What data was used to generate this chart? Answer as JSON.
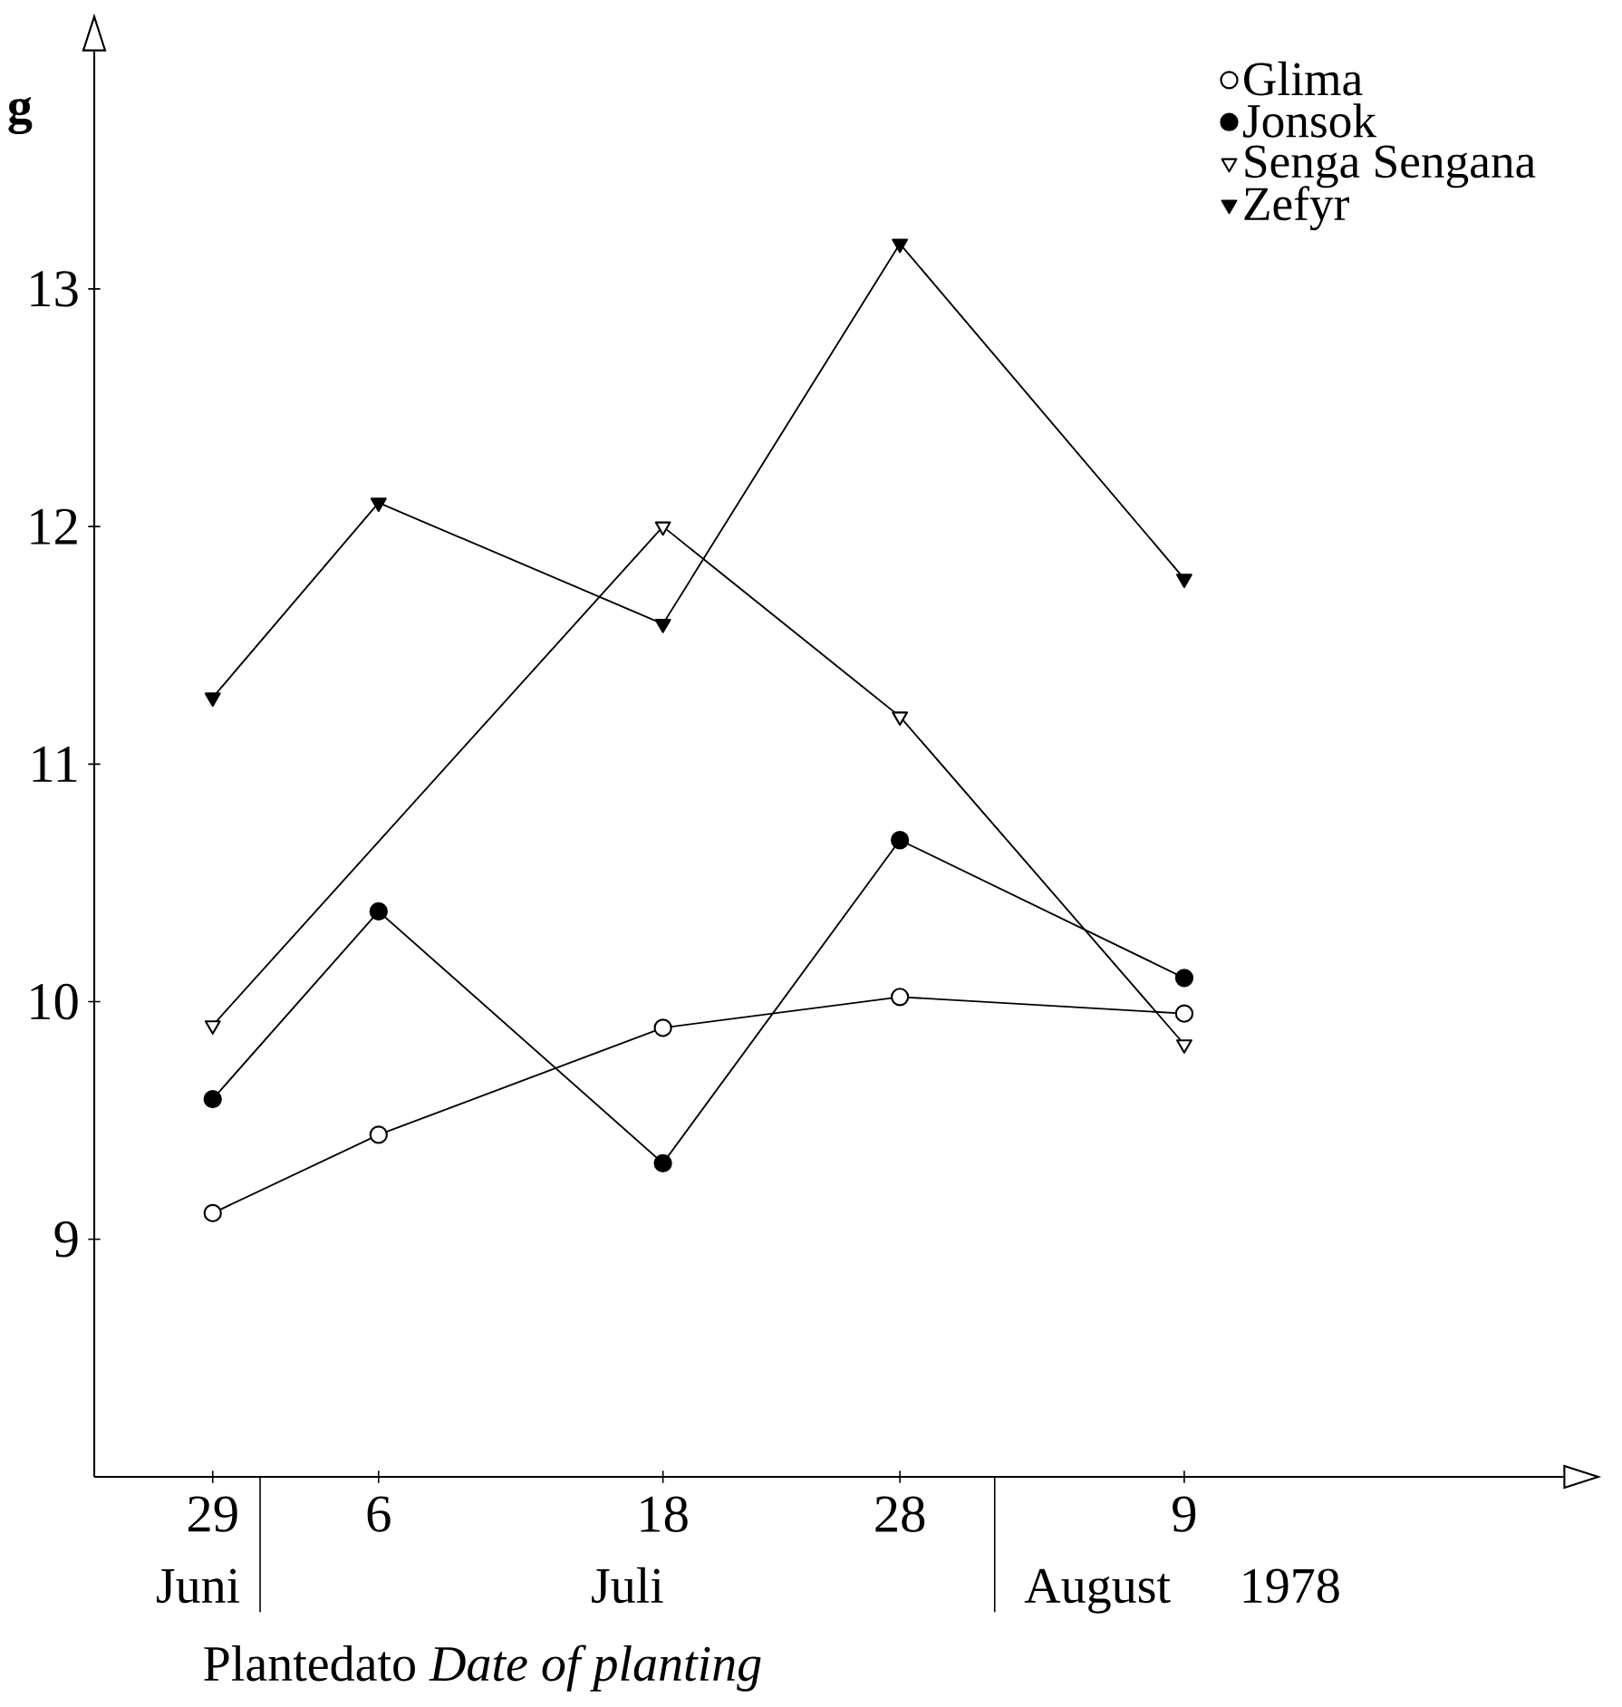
{
  "chart_data": {
    "type": "line",
    "xlabel": "Plantedato *Date of planting*",
    "ylabel": "g",
    "x": [
      "1978-06-29",
      "1978-07-06",
      "1978-07-18",
      "1978-07-28",
      "1978-08-09"
    ],
    "xlim": [
      "1978-06-24",
      "1978-08-25"
    ],
    "xticks": [
      {
        "value": "1978-06-29",
        "label": "29"
      },
      {
        "value": "1978-07-06",
        "label": "6"
      },
      {
        "value": "1978-07-18",
        "label": "18"
      },
      {
        "value": "1978-07-28",
        "label": "28"
      },
      {
        "value": "1978-08-09",
        "label": "9"
      }
    ],
    "ylim": [
      8,
      14
    ],
    "yticks": [
      9,
      10,
      11,
      12,
      13
    ],
    "legend": "top right",
    "series": [
      {
        "name": "Glima",
        "color": "#ffffff",
        "marker": "circle",
        "values": [
          9.11,
          9.44,
          9.89,
          10.02,
          9.95
        ]
      },
      {
        "name": "Jonsok",
        "color": "#000000",
        "marker": "circle",
        "values": [
          9.59,
          10.38,
          9.32,
          10.68,
          10.1
        ]
      },
      {
        "name": "Senga Sengana",
        "color": "#ffffff",
        "marker": "triangle",
        "x": [
          "1978-06-29",
          "1978-07-18",
          "1978-07-28",
          "1978-08-09"
        ],
        "values": [
          9.9,
          12.0,
          11.2,
          9.82
        ]
      },
      {
        "name": "Zefyr",
        "color": "#000000",
        "marker": "triangle",
        "values": [
          11.28,
          12.1,
          11.59,
          13.19,
          11.78
        ]
      }
    ],
    "annotations": [
      "Juni",
      "Juli",
      "August",
      "1978"
    ]
  }
}
